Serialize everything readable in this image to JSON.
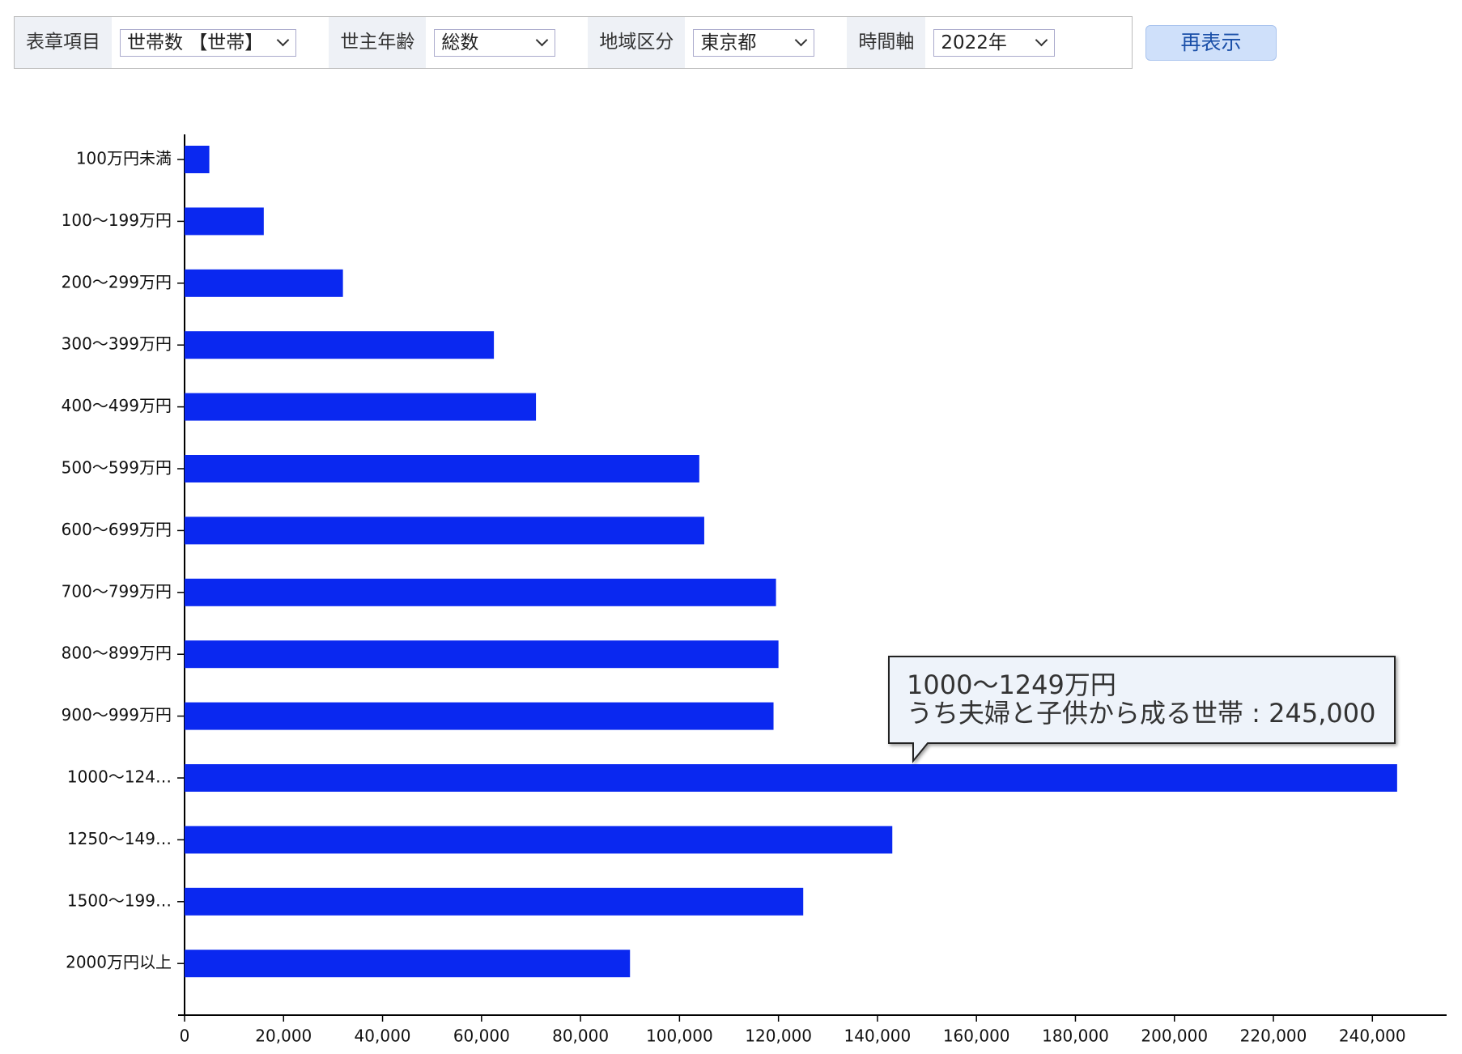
{
  "controls": [
    {
      "label": "表章項目",
      "value": "世帯数 【世帯】"
    },
    {
      "label": "世主年齢",
      "value": "総数"
    },
    {
      "label": "地域区分",
      "value": "東京都"
    },
    {
      "label": "時間軸",
      "value": "2022年"
    }
  ],
  "button": "再表示",
  "chart_data": {
    "type": "hbar",
    "categories": [
      "100万円未満",
      "100～199万円",
      "200～299万円",
      "300～399万円",
      "400～499万円",
      "500～599万円",
      "600～699万円",
      "700～799万円",
      "800～899万円",
      "900～999万円",
      "1000～124…",
      "1250～149…",
      "1500～199…",
      "2000万円以上"
    ],
    "values": [
      5000,
      16000,
      32000,
      62500,
      71000,
      104000,
      105000,
      119500,
      120000,
      119000,
      245000,
      143000,
      125000,
      90000
    ],
    "color": "#0a28f0",
    "xlim": [
      0,
      255000
    ],
    "xticks": [
      0,
      {
        "value": 20000,
        "label": "20,000"
      },
      {
        "value": 40000,
        "label": "40,000"
      },
      {
        "value": 60000,
        "label": "60,000"
      },
      {
        "value": 80000,
        "label": "80,000"
      },
      {
        "value": 100000,
        "label": "100,000"
      },
      {
        "value": 120000,
        "label": "120,000"
      },
      {
        "value": 140000,
        "label": "140,000"
      },
      {
        "value": 160000,
        "label": "160,000"
      },
      {
        "value": 180000,
        "label": "180,000"
      },
      {
        "value": 200000,
        "label": "200,000"
      },
      {
        "value": 220000,
        "label": "220,000"
      },
      {
        "value": 240000,
        "label": "240,000"
      }
    ],
    "tooltip": {
      "title": "1000～1249万円",
      "label": "うち夫婦と子供から成る世帯 : 245,000"
    }
  }
}
